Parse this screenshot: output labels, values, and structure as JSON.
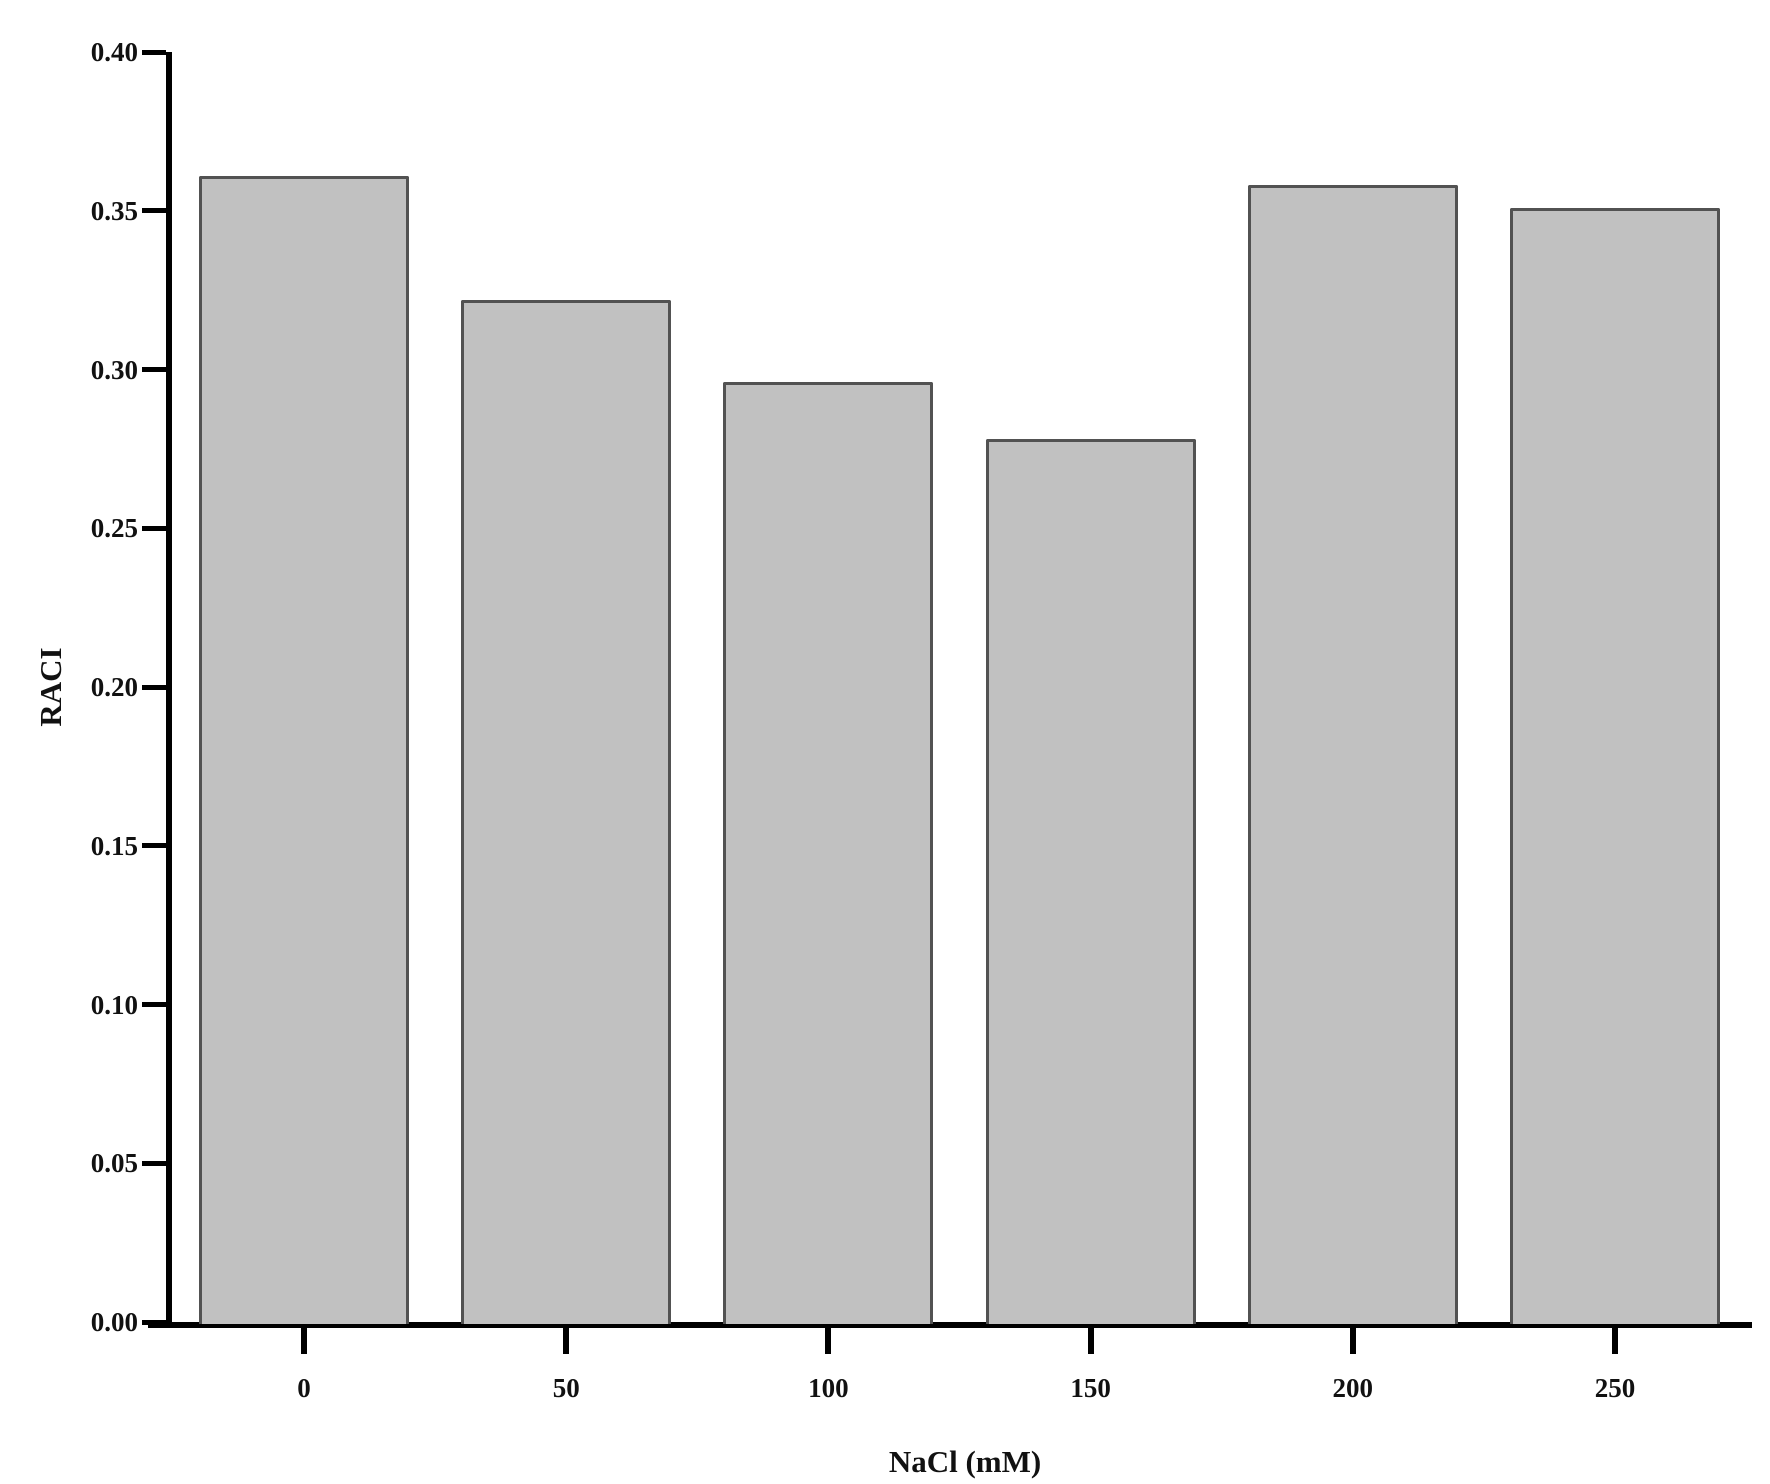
{
  "chart_data": {
    "type": "bar",
    "categories": [
      "0",
      "50",
      "100",
      "150",
      "200",
      "250"
    ],
    "values": [
      0.361,
      0.322,
      0.296,
      0.278,
      0.358,
      0.351
    ],
    "title": "",
    "xlabel": "NaCl (mM)",
    "ylabel": "RACI",
    "ylim": [
      0,
      0.4
    ],
    "ytick_step": 0.05,
    "ytick_labels": [
      "0.00",
      "0.05",
      "0.10",
      "0.15",
      "0.20",
      "0.25",
      "0.30",
      "0.35",
      "0.40"
    ],
    "grid": false,
    "legend": false,
    "bar_fill_color": "#c1c1c1",
    "bar_border_color": "#525252",
    "axis_color": "#000000",
    "text_color": "#111111"
  }
}
